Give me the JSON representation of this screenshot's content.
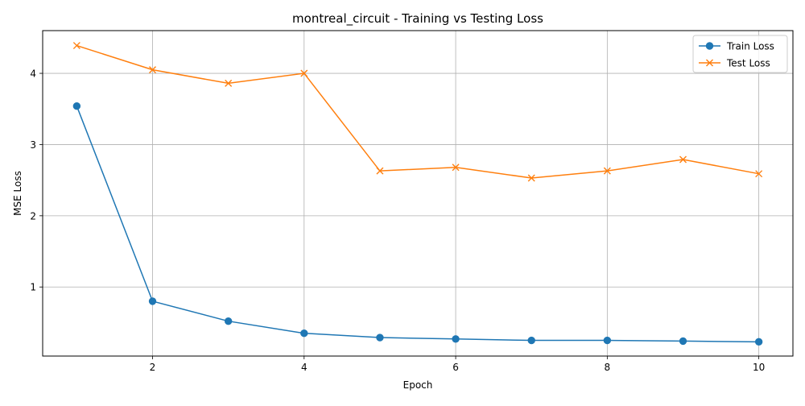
{
  "chart_data": {
    "type": "line",
    "title": "montreal_circuit - Training vs Testing Loss",
    "xlabel": "Epoch",
    "ylabel": "MSE Loss",
    "xlim": [
      0.55,
      10.45
    ],
    "ylim": [
      0.03,
      4.6
    ],
    "xticks": [
      2,
      4,
      6,
      8,
      10
    ],
    "yticks": [
      1,
      2,
      3,
      4
    ],
    "grid": true,
    "legend_position": "top-right",
    "x": [
      1,
      2,
      3,
      4,
      5,
      6,
      7,
      8,
      9,
      10
    ],
    "series": [
      {
        "name": "Train Loss",
        "color": "#1f77b4",
        "marker": "circle",
        "values": [
          3.54,
          0.8,
          0.52,
          0.35,
          0.29,
          0.27,
          0.25,
          0.25,
          0.24,
          0.23
        ]
      },
      {
        "name": "Test Loss",
        "color": "#ff7f0e",
        "marker": "x",
        "values": [
          4.39,
          4.05,
          3.86,
          4.0,
          2.63,
          2.68,
          2.53,
          2.63,
          2.79,
          2.59
        ]
      }
    ]
  }
}
